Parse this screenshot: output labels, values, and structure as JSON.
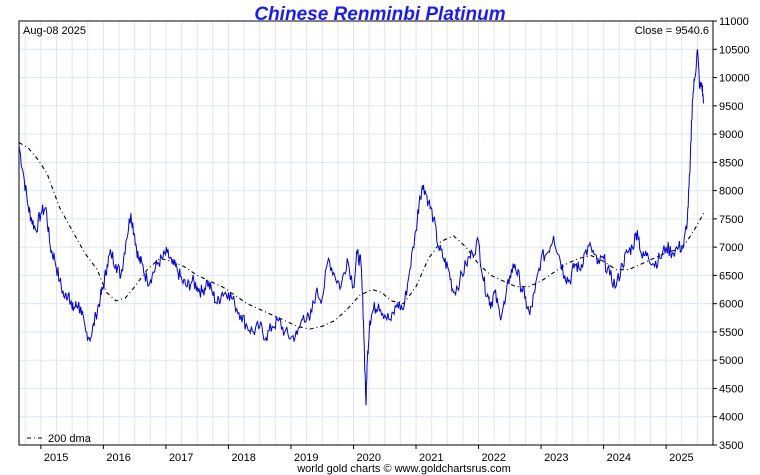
{
  "chart_data": {
    "type": "line",
    "title": "Chinese Renminbi Platinum",
    "date_label": "Aug-08  2025",
    "close_label": "Close = 9540.6",
    "credit": "world gold charts © www.goldchartsrus.com",
    "xlabel": "",
    "ylabel": "",
    "xlim": [
      2014.65,
      2025.75
    ],
    "ylim": [
      3500,
      11000
    ],
    "y_ticks": [
      3500,
      4000,
      4500,
      5000,
      5500,
      6000,
      6500,
      7000,
      7500,
      8000,
      8500,
      9000,
      9500,
      10000,
      10500,
      11000
    ],
    "x_ticks": [
      "2015",
      "2016",
      "2017",
      "2018",
      "2019",
      "2020",
      "2021",
      "2022",
      "2023",
      "2024",
      "2025"
    ],
    "x_tick_values": [
      2015,
      2016,
      2017,
      2018,
      2019,
      2020,
      2021,
      2022,
      2023,
      2024,
      2025
    ],
    "grid": true,
    "legend": {
      "position": "bottom-left",
      "entries": [
        "200 dma"
      ]
    },
    "series": [
      {
        "name": "",
        "color": "#0000dd",
        "x": [
          2014.65,
          2014.72,
          2014.8,
          2014.85,
          2014.92,
          2015.0,
          2015.08,
          2015.15,
          2015.22,
          2015.3,
          2015.38,
          2015.45,
          2015.5,
          2015.55,
          2015.6,
          2015.65,
          2015.72,
          2015.8,
          2015.88,
          2015.95,
          2016.0,
          2016.06,
          2016.12,
          2016.2,
          2016.28,
          2016.36,
          2016.44,
          2016.5,
          2016.56,
          2016.62,
          2016.7,
          2016.78,
          2016.86,
          2016.94,
          2017.02,
          2017.1,
          2017.18,
          2017.26,
          2017.34,
          2017.42,
          2017.5,
          2017.58,
          2017.66,
          2017.74,
          2017.82,
          2017.9,
          2018.0,
          2018.1,
          2018.2,
          2018.3,
          2018.4,
          2018.5,
          2018.6,
          2018.7,
          2018.8,
          2018.9,
          2019.0,
          2019.1,
          2019.2,
          2019.3,
          2019.4,
          2019.5,
          2019.6,
          2019.7,
          2019.8,
          2019.9,
          2020.0,
          2020.06,
          2020.12,
          2020.16,
          2020.2,
          2020.22,
          2020.26,
          2020.32,
          2020.4,
          2020.5,
          2020.6,
          2020.7,
          2020.8,
          2020.9,
          2021.0,
          2021.06,
          2021.12,
          2021.2,
          2021.28,
          2021.36,
          2021.44,
          2021.52,
          2021.6,
          2021.7,
          2021.8,
          2021.9,
          2022.0,
          2022.08,
          2022.16,
          2022.2,
          2022.26,
          2022.34,
          2022.42,
          2022.5,
          2022.58,
          2022.66,
          2022.74,
          2022.82,
          2022.9,
          2023.0,
          2023.1,
          2023.2,
          2023.3,
          2023.38,
          2023.46,
          2023.54,
          2023.62,
          2023.7,
          2023.8,
          2023.9,
          2024.0,
          2024.1,
          2024.2,
          2024.3,
          2024.38,
          2024.46,
          2024.54,
          2024.62,
          2024.7,
          2024.8,
          2024.9,
          2025.0,
          2025.1,
          2025.2,
          2025.28,
          2025.34,
          2025.38,
          2025.42,
          2025.46,
          2025.5,
          2025.54,
          2025.57,
          2025.6
        ],
        "y": [
          8800,
          8300,
          7700,
          7500,
          7300,
          7600,
          7700,
          7000,
          6800,
          6400,
          6100,
          6200,
          5900,
          5950,
          6000,
          5800,
          5500,
          5400,
          5800,
          6100,
          6300,
          6700,
          6900,
          6700,
          6500,
          7100,
          7600,
          7200,
          6800,
          6700,
          6400,
          6500,
          6700,
          6800,
          6900,
          6700,
          6600,
          6400,
          6300,
          6400,
          6300,
          6200,
          6400,
          6200,
          6000,
          6200,
          6200,
          6000,
          5800,
          5600,
          5500,
          5600,
          5400,
          5600,
          5700,
          5500,
          5400,
          5450,
          5800,
          5700,
          6200,
          6100,
          6800,
          6500,
          6300,
          6800,
          6300,
          6900,
          6700,
          5700,
          4200,
          5000,
          5700,
          5900,
          6000,
          5800,
          5700,
          6000,
          5900,
          6600,
          7300,
          7900,
          8100,
          7800,
          7500,
          7000,
          6800,
          6600,
          6200,
          6400,
          6700,
          6900,
          7100,
          6400,
          6100,
          6000,
          6200,
          5800,
          6000,
          6500,
          6700,
          6400,
          6100,
          5800,
          6200,
          6800,
          6900,
          7200,
          6800,
          6500,
          6400,
          6700,
          6600,
          6900,
          7000,
          6700,
          6800,
          6500,
          6300,
          6700,
          6900,
          7000,
          7300,
          6800,
          6900,
          6700,
          6800,
          7000,
          6900,
          7000,
          7000,
          7500,
          8300,
          9600,
          10000,
          10500,
          9800,
          9900,
          9540.6
        ]
      },
      {
        "name": "200 dma",
        "color": "#000000",
        "dashed": true,
        "x": [
          2014.65,
          2014.8,
          2014.95,
          2015.1,
          2015.3,
          2015.5,
          2015.7,
          2015.9,
          2016.05,
          2016.2,
          2016.35,
          2016.5,
          2016.7,
          2016.9,
          2017.1,
          2017.3,
          2017.5,
          2017.7,
          2017.9,
          2018.1,
          2018.3,
          2018.5,
          2018.7,
          2018.9,
          2019.1,
          2019.3,
          2019.5,
          2019.7,
          2019.9,
          2020.1,
          2020.3,
          2020.45,
          2020.6,
          2020.8,
          2021.0,
          2021.2,
          2021.4,
          2021.6,
          2021.8,
          2022.0,
          2022.2,
          2022.4,
          2022.6,
          2022.8,
          2023.0,
          2023.2,
          2023.4,
          2023.6,
          2023.8,
          2024.0,
          2024.2,
          2024.4,
          2024.6,
          2024.8,
          2025.0,
          2025.15,
          2025.3,
          2025.45,
          2025.6
        ],
        "y": [
          8850,
          8750,
          8550,
          8300,
          7700,
          7300,
          6900,
          6600,
          6200,
          6050,
          6100,
          6300,
          6600,
          6800,
          6750,
          6650,
          6500,
          6400,
          6300,
          6150,
          6000,
          5900,
          5800,
          5700,
          5600,
          5550,
          5600,
          5700,
          5900,
          6150,
          6250,
          6200,
          6050,
          6000,
          6300,
          6800,
          7100,
          7200,
          7000,
          6700,
          6500,
          6400,
          6300,
          6300,
          6400,
          6550,
          6700,
          6800,
          6850,
          6750,
          6600,
          6600,
          6700,
          6800,
          6900,
          6950,
          7050,
          7300,
          7600
        ]
      }
    ]
  }
}
